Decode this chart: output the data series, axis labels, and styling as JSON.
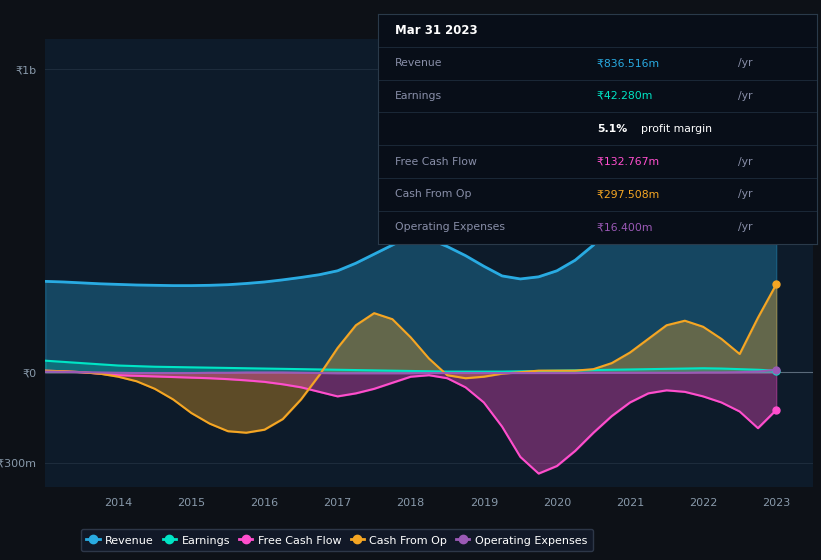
{
  "bg_color": "#0d1117",
  "plot_bg_color": "#0d1b2a",
  "ylabel_1b": "₹1b",
  "ylabel_0": "₹0",
  "ylabel_neg300": "-₹300m",
  "ylim": [
    -380,
    1100
  ],
  "xlim": [
    2013.0,
    2023.5
  ],
  "years": [
    2013.0,
    2013.25,
    2013.5,
    2013.75,
    2014.0,
    2014.25,
    2014.5,
    2014.75,
    2015.0,
    2015.25,
    2015.5,
    2015.75,
    2016.0,
    2016.25,
    2016.5,
    2016.75,
    2017.0,
    2017.25,
    2017.5,
    2017.75,
    2018.0,
    2018.25,
    2018.5,
    2018.75,
    2019.0,
    2019.25,
    2019.5,
    2019.75,
    2020.0,
    2020.25,
    2020.5,
    2020.75,
    2021.0,
    2021.25,
    2021.5,
    2021.75,
    2022.0,
    2022.25,
    2022.5,
    2022.75,
    2023.0
  ],
  "revenue": [
    300,
    298,
    295,
    292,
    290,
    288,
    287,
    286,
    286,
    287,
    289,
    293,
    298,
    305,
    313,
    322,
    335,
    360,
    390,
    420,
    450,
    440,
    415,
    385,
    350,
    318,
    308,
    315,
    335,
    370,
    420,
    490,
    570,
    640,
    690,
    720,
    730,
    820,
    970,
    870,
    780
  ],
  "earnings": [
    38,
    34,
    30,
    26,
    22,
    20,
    18,
    17,
    16,
    15,
    14,
    13,
    12,
    11,
    10,
    9,
    8,
    7,
    6,
    5,
    4,
    3,
    2,
    2,
    2,
    2,
    3,
    4,
    5,
    6,
    7,
    8,
    9,
    10,
    11,
    12,
    13,
    12,
    10,
    8,
    5
  ],
  "free_cash_flow": [
    5,
    3,
    0,
    -5,
    -10,
    -12,
    -14,
    -16,
    -18,
    -20,
    -23,
    -27,
    -32,
    -40,
    -50,
    -65,
    -80,
    -70,
    -55,
    -35,
    -15,
    -10,
    -20,
    -50,
    -100,
    -180,
    -280,
    -335,
    -310,
    -260,
    -200,
    -145,
    -100,
    -70,
    -60,
    -65,
    -80,
    -100,
    -130,
    -185,
    -125
  ],
  "cash_from_op": [
    5,
    3,
    0,
    -5,
    -15,
    -30,
    -55,
    -90,
    -135,
    -170,
    -195,
    -200,
    -190,
    -155,
    -90,
    -10,
    80,
    155,
    195,
    175,
    115,
    45,
    -10,
    -20,
    -15,
    -5,
    0,
    5,
    5,
    5,
    10,
    30,
    65,
    110,
    155,
    170,
    150,
    110,
    60,
    180,
    290
  ],
  "operating_expenses": [
    2,
    1,
    0,
    -1,
    -2,
    -3,
    -3,
    -3,
    -3,
    -2,
    -2,
    -1,
    -1,
    -1,
    -2,
    -3,
    -4,
    -4,
    -4,
    -4,
    -4,
    -3,
    -3,
    -3,
    -3,
    -3,
    -3,
    -3,
    -3,
    -3,
    -2,
    -2,
    -2,
    -2,
    -2,
    -2,
    -1,
    -1,
    0,
    2,
    8
  ],
  "revenue_color": "#29abe2",
  "earnings_color": "#00e5c5",
  "free_cash_flow_color": "#ff4ecd",
  "cash_from_op_color": "#f5a623",
  "operating_expenses_color": "#9b59b6",
  "info_box_bg": "#080e18",
  "revenue_value": "₹836.516m",
  "earnings_value": "₹42.280m",
  "earnings_margin": "5.1%",
  "fcf_value": "₹132.767m",
  "cash_op_value": "₹297.508m",
  "op_exp_value": "₹16.400m",
  "xtick_years": [
    2014,
    2015,
    2016,
    2017,
    2018,
    2019,
    2020,
    2021,
    2022,
    2023
  ]
}
